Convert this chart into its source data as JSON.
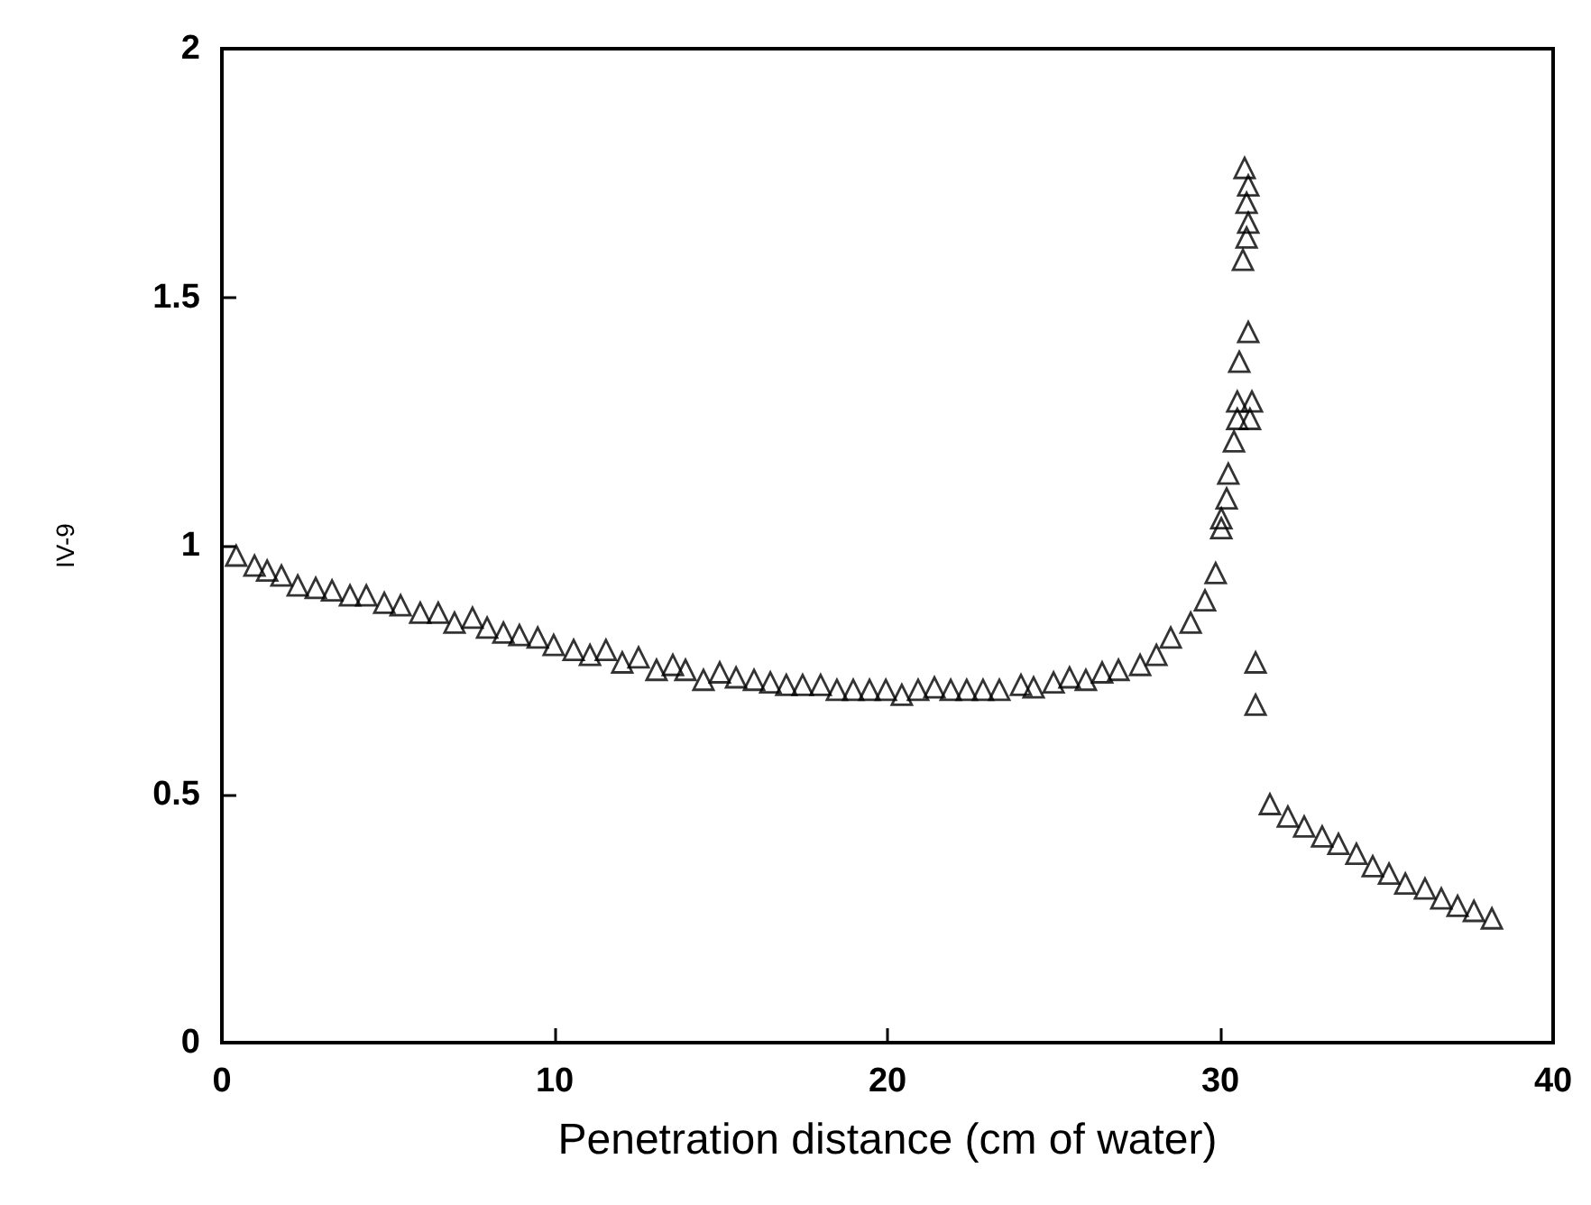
{
  "chart_data": {
    "type": "scatter",
    "xlabel": "Penetration distance (cm of water)",
    "ylabel": "IV-9",
    "xlim": [
      0,
      40
    ],
    "xticks": [
      0,
      10,
      20,
      30,
      40
    ],
    "ylim": [
      0,
      2
    ],
    "yticks": [
      0,
      0.5,
      1,
      1.5,
      2
    ],
    "grid": false,
    "marker": "triangle",
    "series": [
      {
        "color": "#000000",
        "x": [
          0.43,
          0.98,
          1.36,
          1.79,
          2.28,
          2.82,
          3.31,
          3.85,
          4.34,
          4.88,
          5.37,
          5.96,
          6.5,
          6.99,
          7.53,
          7.97,
          8.46,
          8.94,
          9.49,
          9.97,
          10.57,
          11.06,
          11.54,
          12.03,
          12.52,
          13.06,
          13.55,
          13.93,
          14.47,
          14.96,
          15.45,
          15.99,
          16.48,
          16.96,
          17.45,
          17.99,
          18.48,
          18.97,
          19.46,
          19.95,
          20.43,
          20.92,
          21.41,
          21.9,
          22.38,
          22.87,
          23.36,
          24.01,
          24.39,
          24.99,
          25.47,
          25.96,
          26.45,
          26.94,
          27.59,
          28.08,
          28.51,
          29.11,
          29.54,
          29.86,
          30.03,
          30.03,
          30.19,
          30.24,
          30.41,
          30.51,
          30.89,
          30.51,
          30.95,
          30.57,
          30.84,
          30.68,
          30.79,
          30.84,
          30.79,
          30.84,
          30.73,
          31.06,
          31.06,
          31.49,
          32.03,
          32.52,
          33.06,
          33.55,
          34.09,
          34.58,
          35.07,
          35.56,
          36.15,
          36.64,
          37.13,
          37.62,
          38.16
        ],
        "values": [
          0.98,
          0.96,
          0.95,
          0.94,
          0.92,
          0.915,
          0.91,
          0.9,
          0.9,
          0.885,
          0.88,
          0.865,
          0.865,
          0.845,
          0.855,
          0.835,
          0.825,
          0.82,
          0.815,
          0.8,
          0.79,
          0.78,
          0.79,
          0.765,
          0.775,
          0.75,
          0.76,
          0.75,
          0.73,
          0.745,
          0.735,
          0.73,
          0.725,
          0.72,
          0.72,
          0.72,
          0.71,
          0.71,
          0.71,
          0.71,
          0.7,
          0.71,
          0.715,
          0.71,
          0.71,
          0.71,
          0.71,
          0.72,
          0.715,
          0.725,
          0.735,
          0.73,
          0.745,
          0.75,
          0.76,
          0.78,
          0.815,
          0.845,
          0.89,
          0.945,
          1.035,
          1.055,
          1.095,
          1.145,
          1.21,
          1.255,
          1.255,
          1.29,
          1.29,
          1.37,
          1.43,
          1.575,
          1.62,
          1.65,
          1.69,
          1.725,
          1.76,
          0.765,
          0.68,
          0.48,
          0.455,
          0.435,
          0.415,
          0.4,
          0.38,
          0.355,
          0.34,
          0.32,
          0.31,
          0.29,
          0.275,
          0.265,
          0.25
        ]
      }
    ]
  }
}
